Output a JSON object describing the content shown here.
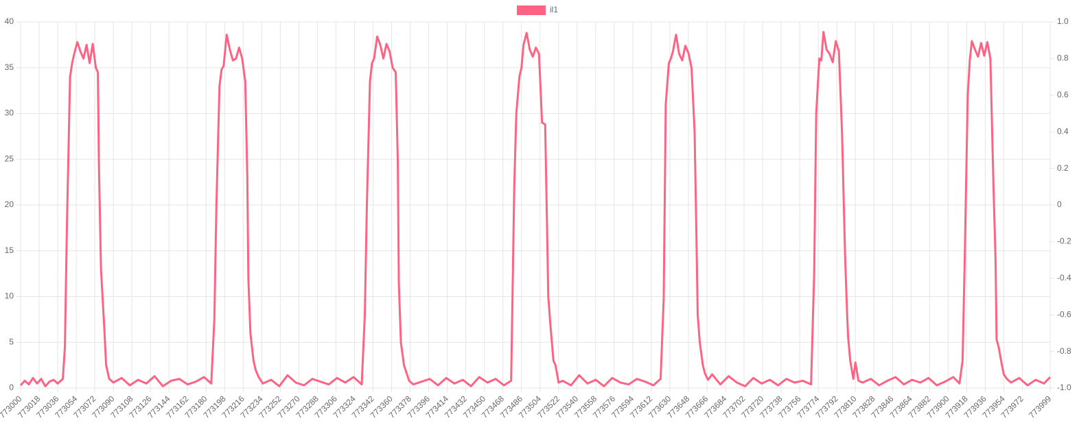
{
  "chart_data": {
    "type": "line",
    "series": [
      {
        "name": "il1",
        "color": "#ff6384",
        "x": [
          773000,
          773004,
          773008,
          773012,
          773016,
          773020,
          773024,
          773028,
          773032,
          773036,
          773041,
          773043,
          773045,
          773048,
          773050,
          773052,
          773055,
          773058,
          773061,
          773064,
          773067,
          773070,
          773073,
          773075,
          773076,
          773078,
          773081,
          773083,
          773086,
          773090,
          773098,
          773106,
          773114,
          773122,
          773130,
          773138,
          773146,
          773154,
          773162,
          773170,
          773178,
          773185,
          773188,
          773190,
          773193,
          773195,
          773197,
          773200,
          773203,
          773206,
          773209,
          773212,
          773215,
          773218,
          773220,
          773221,
          773223,
          773226,
          773228,
          773231,
          773235,
          773243,
          773251,
          773259,
          773267,
          773275,
          773283,
          773291,
          773299,
          773307,
          773315,
          773323,
          773331,
          773334,
          773336,
          773339,
          773341,
          773343,
          773346,
          773349,
          773352,
          773355,
          773358,
          773361,
          773364,
          773366,
          773367,
          773369,
          773372,
          773374,
          773377,
          773381,
          773389,
          773397,
          773405,
          773413,
          773421,
          773429,
          773437,
          773445,
          773453,
          773461,
          773469,
          773476,
          773479,
          773481,
          773484,
          773486,
          773488,
          773491,
          773494,
          773497,
          773500,
          773503,
          773506,
          773509,
          773511,
          773512,
          773514,
          773517,
          773519,
          773522,
          773526,
          773534,
          773542,
          773550,
          773558,
          773566,
          773574,
          773582,
          773590,
          773598,
          773606,
          773614,
          773621,
          773624,
          773626,
          773629,
          773631,
          773633,
          773636,
          773639,
          773642,
          773645,
          773648,
          773651,
          773654,
          773656,
          773657,
          773659,
          773662,
          773664,
          773667,
          773671,
          773679,
          773687,
          773695,
          773703,
          773711,
          773719,
          773727,
          773735,
          773743,
          773751,
          773759,
          773767,
          773770,
          773772,
          773775,
          773777,
          773779,
          773782,
          773785,
          773788,
          773791,
          773794,
          773797,
          773800,
          773802,
          773803,
          773805,
          773808,
          773810,
          773813,
          773817,
          773825,
          773833,
          773841,
          773849,
          773857,
          773865,
          773873,
          773881,
          773889,
          773897,
          773905,
          773911,
          773914,
          773916,
          773919,
          773921,
          773923,
          773926,
          773929,
          773932,
          773935,
          773938,
          773941,
          773944,
          773946,
          773947,
          773949,
          773952,
          773954,
          773957,
          773961,
          773969,
          773977,
          773985,
          773993,
          773999
        ],
        "values": [
          0.3,
          0.8,
          0.4,
          1.1,
          0.5,
          1.0,
          0.2,
          0.7,
          0.9,
          0.5,
          1.0,
          4.5,
          18,
          34,
          35.5,
          36.5,
          37.8,
          36.8,
          36,
          37.5,
          35.5,
          37.6,
          35,
          34.5,
          24.5,
          13,
          7,
          2.5,
          1.0,
          0.6,
          1.1,
          0.3,
          0.9,
          0.5,
          1.3,
          0.2,
          0.8,
          1.0,
          0.4,
          0.7,
          1.2,
          0.5,
          7.5,
          20,
          33,
          34.8,
          35.2,
          38.6,
          37,
          35.8,
          36,
          37.2,
          36,
          33.5,
          23,
          12,
          6,
          3,
          2,
          1.2,
          0.5,
          0.9,
          0.2,
          1.4,
          0.6,
          0.3,
          1.0,
          0.7,
          0.4,
          1.1,
          0.6,
          1.2,
          0.4,
          8,
          20,
          33.5,
          35.5,
          36,
          38.4,
          37.5,
          36,
          37.6,
          36.8,
          35,
          34.5,
          24.8,
          11.5,
          5,
          2.5,
          1.8,
          0.8,
          0.4,
          0.7,
          1.0,
          0.3,
          1.1,
          0.5,
          0.9,
          0.2,
          1.2,
          0.6,
          1.0,
          0.3,
          0.8,
          22,
          30,
          34,
          35,
          37.5,
          38.8,
          37,
          36.2,
          37.2,
          36.5,
          29,
          28.8,
          16.5,
          10,
          7,
          3,
          2.5,
          0.6,
          0.8,
          0.3,
          1.4,
          0.5,
          0.9,
          0.2,
          1.1,
          0.6,
          0.4,
          1.0,
          0.7,
          0.3,
          1.0,
          9.7,
          31,
          35.5,
          36,
          36.8,
          38.6,
          36.5,
          35.8,
          37.4,
          36.6,
          35,
          28,
          15,
          8,
          5,
          2.5,
          1.6,
          0.9,
          1.5,
          0.4,
          1.3,
          0.6,
          0.2,
          1.1,
          0.5,
          0.9,
          0.3,
          1.0,
          0.6,
          0.8,
          0.4,
          12.5,
          30,
          36,
          35.8,
          38.9,
          37,
          36.5,
          35.6,
          37.9,
          36.8,
          28,
          14.5,
          8,
          5.5,
          3,
          1.0,
          2.8,
          0.8,
          0.6,
          1.0,
          0.3,
          0.8,
          1.2,
          0.4,
          0.9,
          0.6,
          1.1,
          0.3,
          0.7,
          1.2,
          0.5,
          3,
          13.5,
          32,
          35.8,
          37.9,
          37,
          36.2,
          37.7,
          36.3,
          37.8,
          36,
          22,
          14,
          5.3,
          4.5,
          2.6,
          1.5,
          1.0,
          0.6,
          1.1,
          0.3,
          0.9,
          0.5,
          1.2
        ]
      }
    ],
    "xlim": [
      773000,
      773999
    ],
    "xticks": [
      773000,
      773018,
      773036,
      773054,
      773072,
      773090,
      773108,
      773126,
      773144,
      773162,
      773180,
      773198,
      773216,
      773234,
      773252,
      773270,
      773288,
      773306,
      773324,
      773342,
      773360,
      773378,
      773396,
      773414,
      773432,
      773450,
      773468,
      773486,
      773504,
      773522,
      773540,
      773558,
      773576,
      773594,
      773612,
      773630,
      773648,
      773666,
      773684,
      773702,
      773720,
      773738,
      773756,
      773774,
      773792,
      773810,
      773828,
      773846,
      773864,
      773882,
      773900,
      773918,
      773936,
      773954,
      773972,
      773999
    ],
    "ylim": [
      0,
      40
    ],
    "yticks": [
      0,
      5,
      10,
      15,
      20,
      25,
      30,
      35,
      40
    ],
    "y2lim": [
      -1,
      1
    ],
    "y2ticks": [
      {
        "value": -1,
        "label": "-1.0"
      },
      -0.8,
      -0.6,
      -0.4,
      -0.2,
      0,
      0.2,
      0.4,
      0.6,
      0.8,
      {
        "value": 1,
        "label": "1.0"
      }
    ],
    "grid": true,
    "legend": "top"
  }
}
